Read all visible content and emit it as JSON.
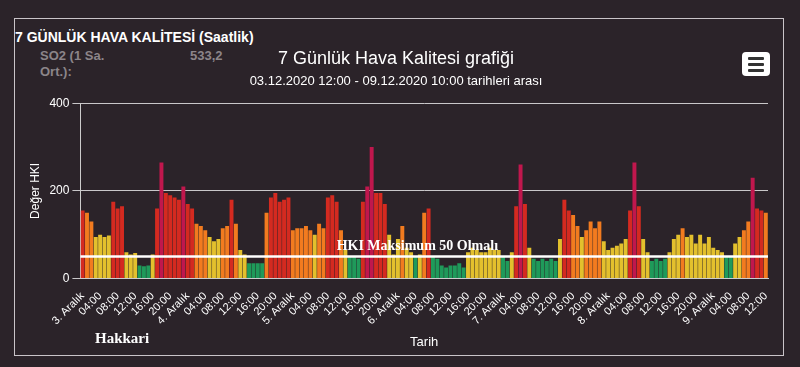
{
  "header": "7 GÜNLÜK HAVA KALİTESİ (Saatlik)",
  "background_texts": [
    "SO2 (1 Sa.",
    "Ort.):",
    "533,2"
  ],
  "footer": "Hakkari",
  "chart_data": {
    "type": "bar",
    "title": "7 Günlük Hava Kalitesi grafiği",
    "subtitle": "03.12.2020 12:00 - 09.12.2020 10:00 tarihleri arası",
    "x_label": "Tarih",
    "y_label": "Değer HKI",
    "categories": [
      "3. Aralık",
      null,
      null,
      null,
      "04:00",
      null,
      null,
      null,
      "08:00",
      null,
      null,
      null,
      "12:00",
      null,
      null,
      null,
      "16:00",
      null,
      null,
      null,
      "20:00",
      null,
      null,
      null,
      "4. Aralık",
      null,
      null,
      null,
      "04:00",
      null,
      null,
      null,
      "08:00",
      null,
      null,
      null,
      "12:00",
      null,
      null,
      null,
      "16:00",
      null,
      null,
      null,
      "20:00",
      null,
      null,
      null,
      "5. Aralık",
      null,
      null,
      null,
      "04:00",
      null,
      null,
      null,
      "08:00",
      null,
      null,
      null,
      "12:00",
      null,
      null,
      null,
      "16:00",
      null,
      null,
      null,
      "20:00",
      null,
      null,
      null,
      "6. Aralık",
      null,
      null,
      null,
      "04:00",
      null,
      null,
      null,
      "08:00",
      null,
      null,
      null,
      "12:00",
      null,
      null,
      null,
      "16:00",
      null,
      null,
      null,
      "20:00",
      null,
      null,
      null,
      "7. Aralık",
      null,
      null,
      null,
      "04:00",
      null,
      null,
      null,
      "08:00",
      null,
      null,
      null,
      "12:00",
      null,
      null,
      null,
      "16:00",
      null,
      null,
      null,
      "20:00",
      null,
      null,
      null,
      "8. Aralık",
      null,
      null,
      null,
      "04:00",
      null,
      null,
      null,
      "08:00",
      null,
      null,
      null,
      "12:00",
      null,
      null,
      null,
      "16:00",
      null,
      null,
      null,
      "20:00",
      null,
      null,
      null,
      "9. Aralık",
      null,
      null,
      null,
      "04:00",
      null,
      null,
      null,
      "08:00",
      null,
      null,
      null,
      "12:00"
    ],
    "values": [
      155,
      150,
      130,
      95,
      100,
      95,
      98,
      175,
      160,
      165,
      60,
      55,
      58,
      30,
      28,
      30,
      55,
      160,
      265,
      195,
      190,
      185,
      180,
      210,
      170,
      160,
      125,
      120,
      110,
      95,
      85,
      90,
      115,
      120,
      180,
      125,
      65,
      55,
      35,
      35,
      35,
      35,
      150,
      185,
      195,
      175,
      180,
      185,
      110,
      115,
      115,
      120,
      110,
      100,
      125,
      115,
      185,
      190,
      175,
      110,
      65,
      50,
      50,
      45,
      175,
      210,
      300,
      195,
      195,
      170,
      100,
      55,
      90,
      120,
      70,
      60,
      50,
      55,
      150,
      160,
      50,
      45,
      30,
      25,
      30,
      30,
      35,
      25,
      60,
      70,
      65,
      60,
      60,
      70,
      65,
      65,
      50,
      40,
      60,
      165,
      260,
      170,
      70,
      45,
      40,
      45,
      40,
      45,
      40,
      90,
      180,
      155,
      145,
      120,
      95,
      110,
      130,
      115,
      130,
      85,
      65,
      70,
      75,
      80,
      90,
      155,
      265,
      165,
      90,
      60,
      40,
      45,
      40,
      45,
      60,
      90,
      100,
      115,
      95,
      100,
      80,
      100,
      80,
      95,
      70,
      65,
      60,
      50,
      50,
      80,
      95,
      110,
      130,
      230,
      160,
      155,
      150
    ],
    "colors": [
      "#d42a20",
      "#f27b1f",
      "#f27b1f",
      "#e3c02d",
      "#e3c02d",
      "#e3c02d",
      "#e3c02d",
      "#d42a20",
      "#d42a20",
      "#d42a20",
      "#e3c02d",
      "#e3c02d",
      "#e3c02d",
      "#1f9a5a",
      "#1f9a5a",
      "#1f9a5a",
      "#e3c02d",
      "#d42a20",
      "#c0174d",
      "#d42a20",
      "#d42a20",
      "#d42a20",
      "#d42a20",
      "#c0174d",
      "#d42a20",
      "#d42a20",
      "#f27b1f",
      "#f27b1f",
      "#f27b1f",
      "#e3c02d",
      "#e3c02d",
      "#e3c02d",
      "#f27b1f",
      "#f27b1f",
      "#d42a20",
      "#f27b1f",
      "#e3c02d",
      "#e3c02d",
      "#1f9a5a",
      "#1f9a5a",
      "#1f9a5a",
      "#1f9a5a",
      "#f27b1f",
      "#d42a20",
      "#d42a20",
      "#d42a20",
      "#d42a20",
      "#d42a20",
      "#f27b1f",
      "#f27b1f",
      "#f27b1f",
      "#f27b1f",
      "#f27b1f",
      "#e3c02d",
      "#f27b1f",
      "#f27b1f",
      "#d42a20",
      "#d42a20",
      "#d42a20",
      "#f27b1f",
      "#e3c02d",
      "#1f9a5a",
      "#1f9a5a",
      "#1f9a5a",
      "#d42a20",
      "#c0174d",
      "#c0174d",
      "#d42a20",
      "#d42a20",
      "#d42a20",
      "#e3c02d",
      "#e3c02d",
      "#e3c02d",
      "#f27b1f",
      "#e3c02d",
      "#e3c02d",
      "#1f9a5a",
      "#e3c02d",
      "#f27b1f",
      "#d42a20",
      "#1f9a5a",
      "#1f9a5a",
      "#1f9a5a",
      "#1f9a5a",
      "#1f9a5a",
      "#1f9a5a",
      "#1f9a5a",
      "#1f9a5a",
      "#e3c02d",
      "#e3c02d",
      "#e3c02d",
      "#e3c02d",
      "#e3c02d",
      "#e3c02d",
      "#e3c02d",
      "#e3c02d",
      "#1f9a5a",
      "#1f9a5a",
      "#e3c02d",
      "#d42a20",
      "#c0174d",
      "#d42a20",
      "#e3c02d",
      "#1f9a5a",
      "#1f9a5a",
      "#1f9a5a",
      "#1f9a5a",
      "#1f9a5a",
      "#1f9a5a",
      "#e3c02d",
      "#d42a20",
      "#d42a20",
      "#f27b1f",
      "#f27b1f",
      "#e3c02d",
      "#f27b1f",
      "#f27b1f",
      "#f27b1f",
      "#f27b1f",
      "#e3c02d",
      "#e3c02d",
      "#e3c02d",
      "#e3c02d",
      "#e3c02d",
      "#e3c02d",
      "#d42a20",
      "#c0174d",
      "#d42a20",
      "#e3c02d",
      "#e3c02d",
      "#1f9a5a",
      "#1f9a5a",
      "#1f9a5a",
      "#1f9a5a",
      "#e3c02d",
      "#e3c02d",
      "#e3c02d",
      "#f27b1f",
      "#e3c02d",
      "#e3c02d",
      "#e3c02d",
      "#e3c02d",
      "#e3c02d",
      "#e3c02d",
      "#e3c02d",
      "#e3c02d",
      "#e3c02d",
      "#1f9a5a",
      "#1f9a5a",
      "#e3c02d",
      "#e3c02d",
      "#f27b1f",
      "#f27b1f",
      "#c0174d",
      "#d42a20",
      "#d42a20",
      "#f27b1f"
    ],
    "ylim": [
      0,
      400
    ],
    "yticks": [
      0,
      200,
      400
    ],
    "grid": true,
    "annotations": [
      {
        "text": "HKI Maksimum 50 Olmalı",
        "y": 50
      }
    ]
  }
}
